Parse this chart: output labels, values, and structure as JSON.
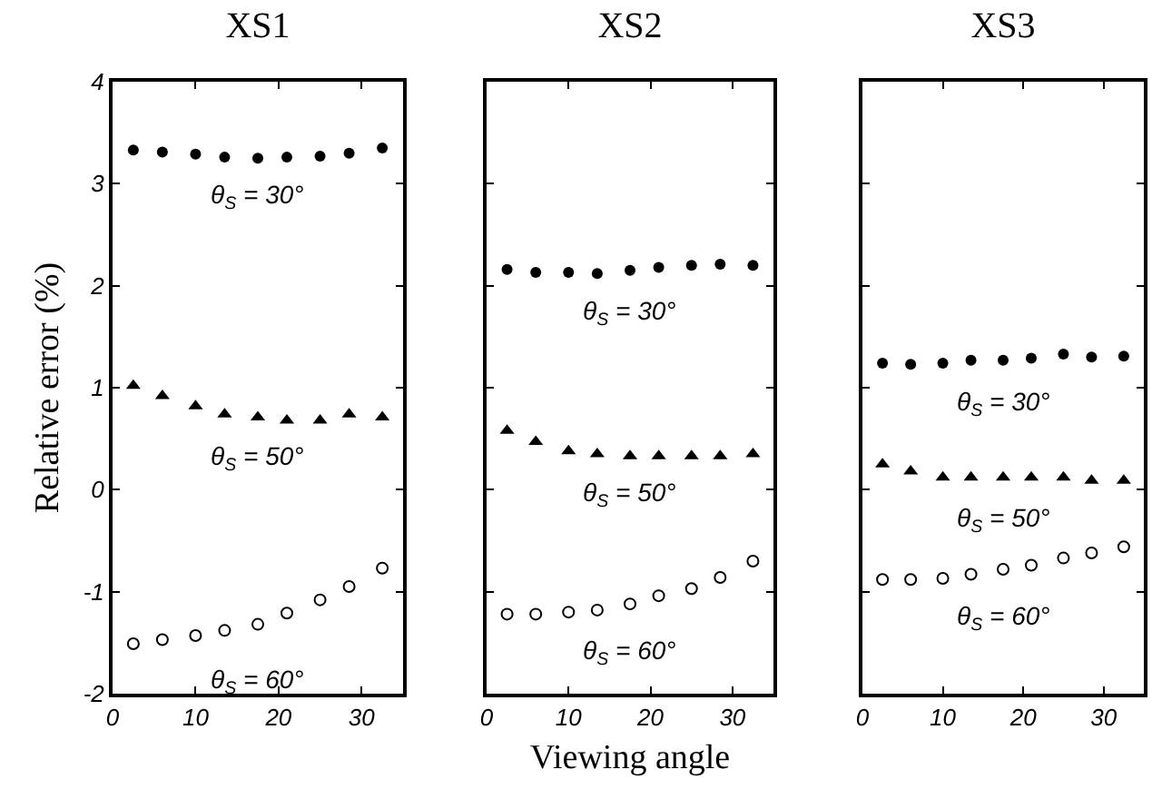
{
  "chart_data": [
    {
      "type": "scatter",
      "title": "XS1",
      "ylabel": "Relative error (%)",
      "x": [
        2.5,
        6,
        10,
        13.5,
        17.5,
        21,
        25,
        28.5,
        32.5
      ],
      "xlim": [
        0,
        35
      ],
      "xticks": [
        0,
        10,
        20,
        30
      ],
      "ylim": [
        -2,
        4
      ],
      "yticks": [
        -2,
        -1,
        0,
        1,
        2,
        3,
        4
      ],
      "grid": false,
      "legend": false,
      "series": [
        {
          "name": "θ$_{S}$ = 30°",
          "color": "#000000",
          "marker": "circle",
          "values": [
            3.33,
            3.31,
            3.29,
            3.26,
            3.25,
            3.26,
            3.27,
            3.3,
            3.35
          ]
        },
        {
          "name": "θ$_{S}$ = 50°",
          "color": "#000000",
          "marker": "triangle",
          "values": [
            1.02,
            0.92,
            0.82,
            0.74,
            0.71,
            0.68,
            0.68,
            0.74,
            0.71
          ]
        },
        {
          "name": "θ$_{S}$ = 60°",
          "color": "#000000",
          "marker": "circle-open",
          "values": [
            -1.51,
            -1.47,
            -1.43,
            -1.38,
            -1.32,
            -1.21,
            -1.08,
            -0.95,
            -0.77
          ]
        }
      ]
    },
    {
      "type": "scatter",
      "title": "XS2",
      "xlabel": "Viewing angle",
      "x": [
        2.5,
        6,
        10,
        13.5,
        17.5,
        21,
        25,
        28.5,
        32.5
      ],
      "xlim": [
        0,
        35
      ],
      "xticks": [
        0,
        10,
        20,
        30
      ],
      "ylim": [
        -2,
        4
      ],
      "yticks": [
        -2,
        -1,
        0,
        1,
        2,
        3,
        4
      ],
      "tick_labels": "x",
      "grid": false,
      "legend": false,
      "series": [
        {
          "name": "θ$_{S}$ = 30°",
          "color": "#000000",
          "marker": "circle",
          "values": [
            2.16,
            2.13,
            2.13,
            2.12,
            2.15,
            2.18,
            2.2,
            2.21,
            2.2
          ]
        },
        {
          "name": "θ$_{S}$ = 50°",
          "color": "#000000",
          "marker": "triangle",
          "values": [
            0.58,
            0.47,
            0.38,
            0.35,
            0.33,
            0.33,
            0.33,
            0.33,
            0.35
          ]
        },
        {
          "name": "θ$_{S}$ = 60°",
          "color": "#000000",
          "marker": "circle-open",
          "values": [
            -1.22,
            -1.22,
            -1.2,
            -1.18,
            -1.12,
            -1.04,
            -0.97,
            -0.86,
            -0.7
          ]
        }
      ]
    },
    {
      "type": "scatter",
      "title": "XS3",
      "x": [
        2.5,
        6,
        10,
        13.5,
        17.5,
        21,
        25,
        28.5,
        32.5
      ],
      "xlim": [
        0,
        35
      ],
      "xticks": [
        0,
        10,
        20,
        30
      ],
      "ylim": [
        -2,
        4
      ],
      "yticks": [
        -2,
        -1,
        0,
        1,
        2,
        3,
        4
      ],
      "tick_labels": "x",
      "grid": false,
      "legend": false,
      "series": [
        {
          "name": "θ$_{S}$ = 30°",
          "color": "#000000",
          "marker": "circle",
          "values": [
            1.24,
            1.23,
            1.24,
            1.27,
            1.27,
            1.29,
            1.33,
            1.3,
            1.31
          ]
        },
        {
          "name": "θ$_{S}$ = 50°",
          "color": "#000000",
          "marker": "triangle",
          "values": [
            0.25,
            0.18,
            0.12,
            0.12,
            0.12,
            0.12,
            0.12,
            0.09,
            0.09
          ]
        },
        {
          "name": "θ$_{S}$ = 60°",
          "color": "#000000",
          "marker": "circle-open",
          "values": [
            -0.88,
            -0.88,
            -0.87,
            -0.83,
            -0.78,
            -0.74,
            -0.67,
            -0.62,
            -0.56
          ]
        }
      ]
    }
  ]
}
